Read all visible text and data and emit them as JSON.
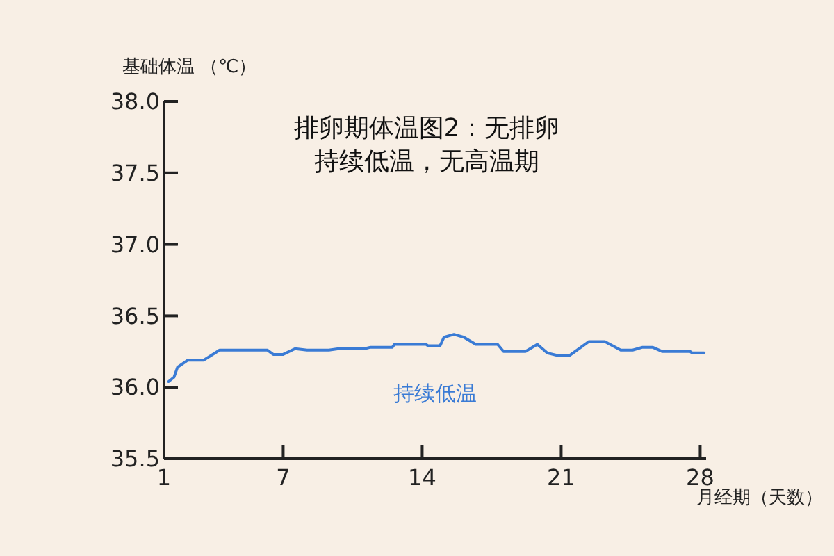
{
  "chart_data": {
    "type": "line",
    "title": "排卵期体温图2：无排卵",
    "subtitle": "持续低温，无高温期",
    "ylabel": "基础体温 （℃）",
    "xlabel": "月经期（天数）",
    "x": [
      1.23,
      1.5,
      1.68,
      2.2,
      3.0,
      3.8,
      6.2,
      6.5,
      7.0,
      7.6,
      8.2,
      9.3,
      9.8,
      10.25,
      11.1,
      11.4,
      12.5,
      12.6,
      14.2,
      14.3,
      14.9,
      15.1,
      15.6,
      16.1,
      16.7,
      17.8,
      18.1,
      19.2,
      19.8,
      20.3,
      20.9,
      21.4,
      22.4,
      23.2,
      24.0,
      24.6,
      25.1,
      25.6,
      26.1,
      27.5,
      27.6,
      28.2
    ],
    "series": [
      {
        "color": "#3a7bd5",
        "values": [
          36.04,
          36.07,
          36.14,
          36.19,
          36.19,
          36.26,
          36.26,
          36.23,
          36.23,
          36.27,
          36.26,
          36.26,
          36.27,
          36.27,
          36.27,
          36.28,
          36.28,
          36.3,
          36.3,
          36.29,
          36.29,
          36.35,
          36.37,
          36.35,
          36.3,
          36.3,
          36.25,
          36.25,
          36.3,
          36.24,
          36.22,
          36.22,
          36.32,
          36.32,
          36.26,
          36.26,
          36.28,
          36.28,
          36.25,
          36.25,
          36.24,
          36.24
        ]
      }
    ],
    "xlim": [
      1,
      28.3
    ],
    "xticks": [
      1,
      7,
      14,
      21,
      28
    ],
    "ylim": [
      35.5,
      38
    ],
    "yticks": [
      {
        "value": 35.5,
        "label": "35.5"
      },
      {
        "value": 36,
        "label": "36.0"
      },
      {
        "value": 36.5,
        "label": "36.5"
      },
      {
        "value": 37,
        "label": "37.0"
      },
      {
        "value": 37.5,
        "label": "37.5"
      },
      {
        "value": 38,
        "label": "38.0"
      }
    ],
    "annotations": [
      "持续低温"
    ],
    "line_style": "solid"
  }
}
